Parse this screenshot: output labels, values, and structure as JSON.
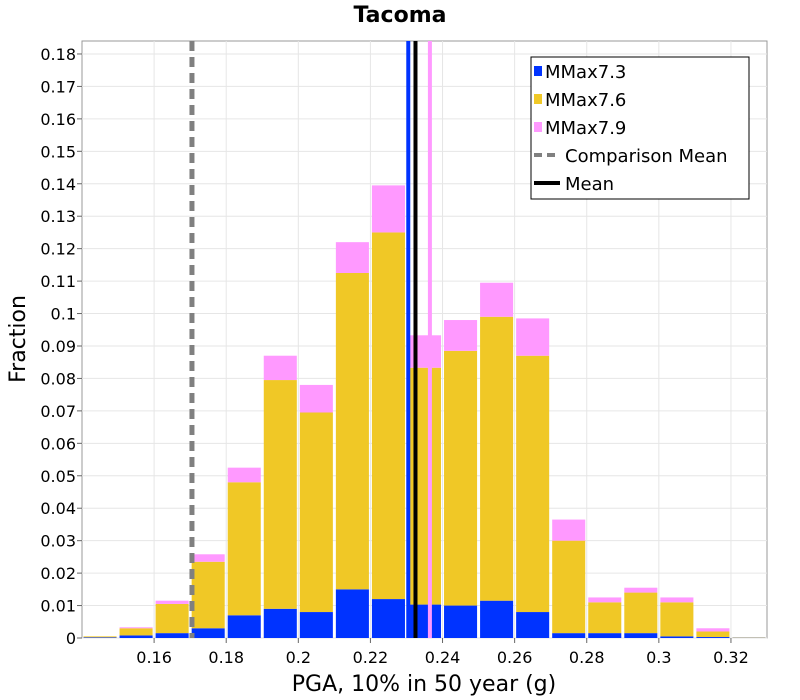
{
  "chart_data": {
    "type": "bar",
    "stacked": true,
    "title": "Tacoma",
    "xlabel": "PGA, 10% in 50 year (g)",
    "ylabel": "Fraction",
    "xlim": [
      0.14,
      0.33
    ],
    "ylim": [
      0,
      0.184
    ],
    "bin_width": 0.01,
    "x_ticks": [
      0.16,
      0.18,
      0.2,
      0.22,
      0.24,
      0.26,
      0.28,
      0.3,
      0.32
    ],
    "y_ticks": [
      0,
      0.01,
      0.02,
      0.03,
      0.04,
      0.05,
      0.06,
      0.07,
      0.08,
      0.09,
      0.1,
      0.11,
      0.12,
      0.13,
      0.14,
      0.15,
      0.16,
      0.17,
      0.18
    ],
    "grid": true,
    "legend_position": "top-right",
    "bin_centers": [
      0.145,
      0.155,
      0.165,
      0.175,
      0.185,
      0.195,
      0.205,
      0.215,
      0.225,
      0.235,
      0.245,
      0.255,
      0.265,
      0.275,
      0.285,
      0.295,
      0.305,
      0.315,
      0.325
    ],
    "series": [
      {
        "name": "MMax7.3",
        "color": "#0033ff",
        "values": [
          0.0002,
          0.0008,
          0.0015,
          0.003,
          0.007,
          0.009,
          0.008,
          0.015,
          0.012,
          0.0103,
          0.01,
          0.0115,
          0.008,
          0.0015,
          0.0015,
          0.0015,
          0.0005,
          0.0003,
          0.0001
        ]
      },
      {
        "name": "MMax7.6",
        "color": "#f0c826",
        "values": [
          0.0003,
          0.0022,
          0.009,
          0.0205,
          0.041,
          0.0705,
          0.0615,
          0.0975,
          0.113,
          0.073,
          0.0785,
          0.0875,
          0.079,
          0.0285,
          0.0095,
          0.0125,
          0.0105,
          0.0017,
          0.0001
        ]
      },
      {
        "name": "MMax7.9",
        "color": "#ff99ff",
        "values": [
          0.0,
          0.0003,
          0.001,
          0.0023,
          0.0045,
          0.0075,
          0.0085,
          0.0095,
          0.0145,
          0.01,
          0.0095,
          0.0105,
          0.0115,
          0.0065,
          0.0015,
          0.0015,
          0.0015,
          0.001,
          0.0
        ]
      }
    ],
    "vertical_lines": [
      {
        "name": "MMax7.3 mean",
        "x": 0.2305,
        "color": "#0033ff",
        "style": "solid"
      },
      {
        "name": "MMax7.9 mean",
        "x": 0.2365,
        "color": "#ff99ff",
        "style": "solid"
      },
      {
        "name": "Mean",
        "x": 0.2325,
        "color": "#000000",
        "style": "solid"
      },
      {
        "name": "Comparison Mean",
        "x": 0.1705,
        "color": "#808080",
        "style": "dashed"
      }
    ],
    "legend": [
      {
        "label": "MMax7.3",
        "kind": "patch",
        "color": "#0033ff"
      },
      {
        "label": "MMax7.6",
        "kind": "patch",
        "color": "#f0c826"
      },
      {
        "label": "MMax7.9",
        "kind": "patch",
        "color": "#ff99ff"
      },
      {
        "label": "Comparison Mean",
        "kind": "dashed-line",
        "color": "#808080"
      },
      {
        "label": "Mean",
        "kind": "line",
        "color": "#000000"
      }
    ]
  }
}
